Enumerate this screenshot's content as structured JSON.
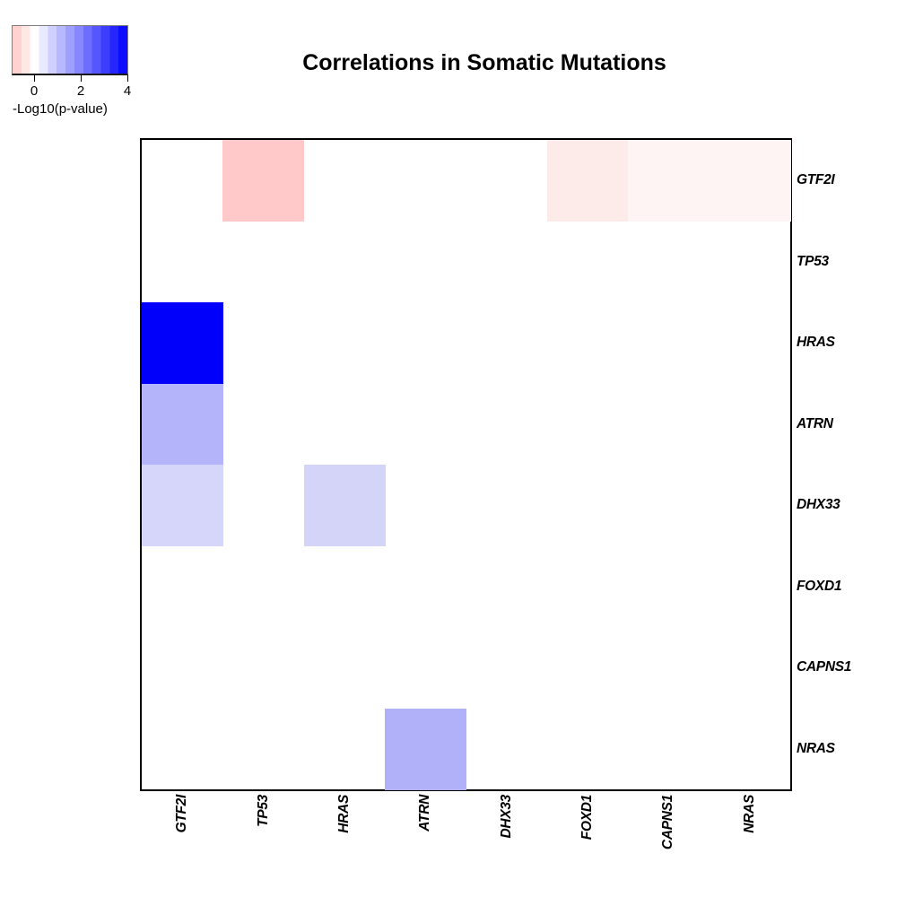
{
  "title": "Correlations in Somatic Mutations",
  "colorbar": {
    "label": "-Log10(p-value)",
    "tick_labels": [
      "0",
      "2",
      "4"
    ],
    "gradient": {
      "negative_end": "#ffc7c5",
      "midpoint": "#ffffff",
      "positive_end": "#0000fe",
      "bands": 13,
      "value_range": [
        -1,
        4
      ]
    }
  },
  "chart_data": {
    "type": "heatmap",
    "title": "Correlations in Somatic Mutations",
    "row_labels_top_to_bottom": [
      "GTF2I",
      "TP53",
      "HRAS",
      "ATRN",
      "DHX33",
      "FOXD1",
      "CAPNS1",
      "NRAS"
    ],
    "col_labels_left_to_right": [
      "GTF2I",
      "TP53",
      "HRAS",
      "ATRN",
      "DHX33",
      "FOXD1",
      "CAPNS1",
      "NRAS"
    ],
    "colorbar_label": "-Log10(p-value)",
    "colorbar_ticks": [
      0,
      2,
      4
    ],
    "colorbar_value_range": [
      -1,
      4
    ],
    "default_cell_value": 0,
    "default_cell_color": "#ffffff",
    "cells": [
      {
        "row": "GTF2I",
        "col": "TP53",
        "row_index": 0,
        "col_index": 1,
        "value": -0.95,
        "color": "#ffc9c9"
      },
      {
        "row": "GTF2I",
        "col": "FOXD1",
        "row_index": 0,
        "col_index": 5,
        "value": -0.37,
        "color": "#fcebe9"
      },
      {
        "row": "GTF2I",
        "col": "CAPNS1",
        "row_index": 0,
        "col_index": 6,
        "value": -0.19,
        "color": "#fef4f3"
      },
      {
        "row": "GTF2I",
        "col": "NRAS",
        "row_index": 0,
        "col_index": 7,
        "value": -0.19,
        "color": "#fef4f3"
      },
      {
        "row": "HRAS",
        "col": "GTF2I",
        "row_index": 2,
        "col_index": 0,
        "value": 4.0,
        "color": "#0101fb"
      },
      {
        "row": "ATRN",
        "col": "GTF2I",
        "row_index": 3,
        "col_index": 0,
        "value": 1.18,
        "color": "#b4b4fa"
      },
      {
        "row": "DHX33",
        "col": "GTF2I",
        "row_index": 4,
        "col_index": 0,
        "value": 0.64,
        "color": "#d6d6fa"
      },
      {
        "row": "DHX33",
        "col": "HRAS",
        "row_index": 4,
        "col_index": 2,
        "value": 0.68,
        "color": "#d4d4f9"
      },
      {
        "row": "NRAS",
        "col": "ATRN",
        "row_index": 7,
        "col_index": 3,
        "value": 1.22,
        "color": "#b1b1fa"
      }
    ],
    "matrix_signed_neg_log10_p": [
      [
        0,
        -0.95,
        0,
        0,
        0,
        -0.37,
        -0.19,
        -0.19
      ],
      [
        0,
        0,
        0,
        0,
        0,
        0,
        0,
        0
      ],
      [
        4.0,
        0,
        0,
        0,
        0,
        0,
        0,
        0
      ],
      [
        1.18,
        0,
        0,
        0,
        0,
        0,
        0,
        0
      ],
      [
        0.64,
        0,
        0.68,
        0,
        0,
        0,
        0,
        0
      ],
      [
        0,
        0,
        0,
        0,
        0,
        0,
        0,
        0
      ],
      [
        0,
        0,
        0,
        0,
        0,
        0,
        0,
        0
      ],
      [
        0,
        0,
        0,
        1.22,
        0,
        0,
        0,
        0
      ]
    ],
    "layout": {
      "legend_position": "top-left",
      "x_labels_rotation_deg": 90,
      "y_labels_side": "right",
      "grid": false
    }
  }
}
